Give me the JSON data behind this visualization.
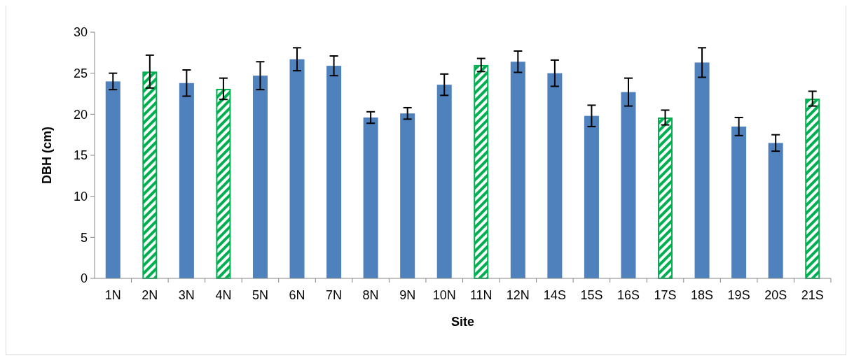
{
  "chart_data": {
    "type": "bar",
    "xlabel": "Site",
    "ylabel": "DBH (cm)",
    "categories": [
      "1N",
      "2N",
      "3N",
      "4N",
      "5N",
      "6N",
      "7N",
      "8N",
      "9N",
      "10N",
      "11N",
      "12N",
      "14S",
      "15S",
      "16S",
      "17S",
      "18S",
      "19S",
      "20S",
      "21S"
    ],
    "values": [
      24.0,
      25.2,
      23.8,
      23.1,
      24.7,
      26.7,
      25.9,
      19.6,
      20.1,
      23.6,
      26.0,
      26.4,
      25.0,
      19.8,
      22.7,
      19.6,
      26.3,
      18.5,
      16.5,
      21.9
    ],
    "errors": [
      1.0,
      2.0,
      1.6,
      1.3,
      1.7,
      1.4,
      1.2,
      0.7,
      0.7,
      1.3,
      0.8,
      1.3,
      1.6,
      1.3,
      1.7,
      0.9,
      1.8,
      1.1,
      1.0,
      0.9
    ],
    "colors": [
      "#4f81bd",
      "#00b050",
      "#4f81bd",
      "#00b050",
      "#4f81bd",
      "#4f81bd",
      "#4f81bd",
      "#4f81bd",
      "#4f81bd",
      "#4f81bd",
      "#00b050",
      "#4f81bd",
      "#4f81bd",
      "#4f81bd",
      "#4f81bd",
      "#00b050",
      "#4f81bd",
      "#4f81bd",
      "#4f81bd",
      "#00b050"
    ],
    "ylim": [
      0,
      30
    ],
    "yticks": [
      0,
      5,
      10,
      15,
      20,
      25,
      30
    ],
    "grid": false
  }
}
